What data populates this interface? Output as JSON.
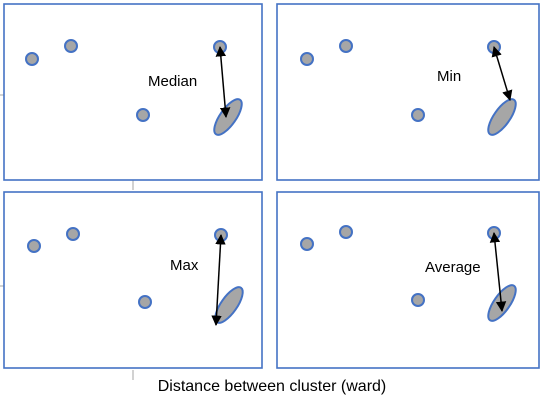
{
  "colors": {
    "border": "#4472c4",
    "point_fill": "#a6a6a6",
    "arrow": "#000000",
    "tick": "#a6a6a6"
  },
  "panels": [
    {
      "label": "Median"
    },
    {
      "label": "Min"
    },
    {
      "label": "Max"
    },
    {
      "label": "Average"
    }
  ],
  "caption": "Distance between cluster (ward)"
}
